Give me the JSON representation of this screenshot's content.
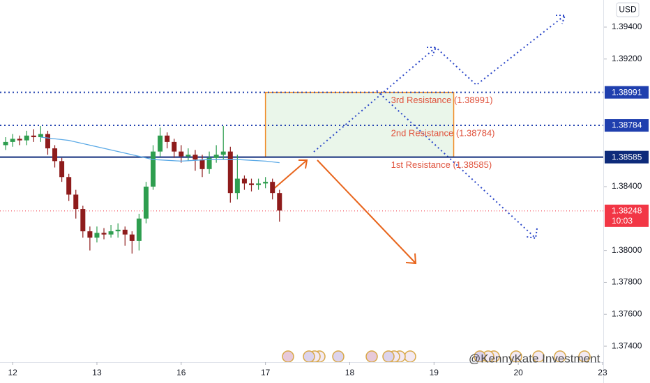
{
  "chart_data": {
    "type": "candlestick",
    "currency": "USD",
    "x": [
      -2,
      0,
      2,
      4,
      6,
      8,
      10,
      12,
      14,
      16,
      18,
      20,
      22,
      24,
      26,
      28,
      30,
      32,
      34,
      36,
      38,
      40,
      42,
      44,
      46,
      48,
      50,
      52,
      54,
      56,
      58,
      60,
      62,
      64,
      66,
      68,
      70,
      72,
      74,
      76
    ],
    "open": [
      1.3866,
      1.3868,
      1.387,
      1.3869,
      1.3872,
      1.3871,
      1.3873,
      1.3864,
      1.3856,
      1.3846,
      1.3835,
      1.3826,
      1.3812,
      1.3808,
      1.3811,
      1.381,
      1.3812,
      1.3813,
      1.381,
      1.3806,
      1.382,
      1.384,
      1.3862,
      1.3872,
      1.3868,
      1.3862,
      1.3859,
      1.386,
      1.3857,
      1.3851,
      1.3858,
      1.386,
      1.3862,
      1.3836,
      1.3845,
      1.3842,
      1.3841,
      1.3842,
      1.3843,
      1.3836
    ],
    "high": [
      1.3871,
      1.3873,
      1.3872,
      1.3875,
      1.3876,
      1.3878,
      1.3875,
      1.3866,
      1.3858,
      1.3848,
      1.3838,
      1.3828,
      1.3815,
      1.3815,
      1.3814,
      1.3816,
      1.3817,
      1.3815,
      1.3812,
      1.3823,
      1.3843,
      1.3866,
      1.3877,
      1.3874,
      1.387,
      1.3866,
      1.3864,
      1.3863,
      1.386,
      1.3862,
      1.3866,
      1.3878,
      1.3865,
      1.386,
      1.3847,
      1.3845,
      1.3845,
      1.3846,
      1.3845,
      1.3838
    ],
    "low": [
      1.3863,
      1.3865,
      1.3866,
      1.3866,
      1.3868,
      1.3868,
      1.386,
      1.3852,
      1.3843,
      1.3831,
      1.382,
      1.3808,
      1.38,
      1.3805,
      1.3807,
      1.3808,
      1.3808,
      1.3803,
      1.3798,
      1.38,
      1.3817,
      1.3838,
      1.3859,
      1.3864,
      1.3858,
      1.3855,
      1.3856,
      1.385,
      1.3846,
      1.3848,
      1.3855,
      1.3857,
      1.383,
      1.3832,
      1.3838,
      1.3837,
      1.3838,
      1.3839,
      1.3832,
      1.3818
    ],
    "close": [
      1.3868,
      1.387,
      1.3869,
      1.3872,
      1.3871,
      1.3873,
      1.3864,
      1.3856,
      1.3846,
      1.3835,
      1.3826,
      1.3812,
      1.3808,
      1.3811,
      1.381,
      1.3812,
      1.3813,
      1.381,
      1.3806,
      1.382,
      1.384,
      1.3862,
      1.3872,
      1.3868,
      1.3862,
      1.3859,
      1.386,
      1.3857,
      1.3851,
      1.3858,
      1.386,
      1.3862,
      1.3836,
      1.3845,
      1.3842,
      1.3841,
      1.3842,
      1.3843,
      1.3836,
      1.3825
    ],
    "up_color": "#2e9e4f",
    "down_color": "#8e1b1b",
    "moving_average": {
      "x": [
        8,
        16,
        24,
        32,
        40,
        48,
        56,
        64,
        72,
        76
      ],
      "values": [
        1.3871,
        1.3869,
        1.3865,
        1.3861,
        1.3857,
        1.3856,
        1.3857,
        1.3857,
        1.3856,
        1.3855
      ],
      "color": "#5aa9e6"
    },
    "levels": [
      {
        "name": "3rd Resistance (1.38991)",
        "value": 1.38991,
        "style": "dotted",
        "color": "#1f3fae"
      },
      {
        "name": "2nd Resistance (1.38784)",
        "value": 1.38784,
        "style": "dotted",
        "color": "#1f3fae"
      },
      {
        "name": "1st Resistance (1.38585)",
        "value": 1.38585,
        "style": "solid",
        "color": "#0d2a7a"
      }
    ],
    "level_text_color": "#e0533d",
    "zone": {
      "x": [
        72,
        125.6
      ],
      "y": [
        1.38585,
        1.38991
      ],
      "color": "#f08a24",
      "fill": "#eaf6ea"
    },
    "current_price": {
      "value": 1.38248,
      "countdown": "10:03",
      "color": "#f23645"
    },
    "xlim": [
      -3.6,
      168.4
    ],
    "ylim": [
      1.373,
      1.3957
    ],
    "xticks": [
      {
        "value": 0,
        "label": "12"
      },
      {
        "value": 24,
        "label": "13"
      },
      {
        "value": 48,
        "label": "16"
      },
      {
        "value": 72,
        "label": "17"
      },
      {
        "value": 96,
        "label": "18"
      },
      {
        "value": 120,
        "label": "19"
      },
      {
        "value": 144,
        "label": "20"
      },
      {
        "value": 168,
        "label": "23"
      }
    ],
    "yticks": [
      {
        "value": 1.394,
        "label": "1.39400"
      },
      {
        "value": 1.392,
        "label": "1.39200"
      },
      {
        "value": 1.384,
        "label": "1.38400"
      },
      {
        "value": 1.38,
        "label": "1.38000"
      },
      {
        "value": 1.378,
        "label": "1.37800"
      },
      {
        "value": 1.376,
        "label": "1.37600"
      },
      {
        "value": 1.374,
        "label": "1.37400"
      }
    ],
    "watermark": "@KennyKate Investment"
  }
}
